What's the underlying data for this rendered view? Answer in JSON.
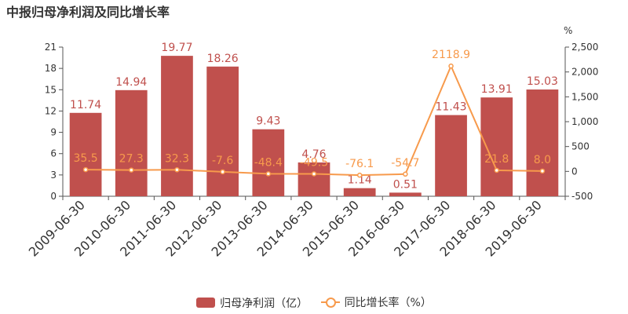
{
  "title": "中报归母净利润及同比增长率",
  "right_axis_unit": "%",
  "legend": {
    "bar_label": "归母净利润（亿）",
    "line_label": "同比增长率（%）"
  },
  "colors": {
    "bar": "#c0504d",
    "line": "#f79a4c",
    "bar_label": "#c0504d",
    "line_label": "#f79a4c"
  },
  "chart_data": {
    "type": "bar",
    "categories": [
      "2009-06-30",
      "2010-06-30",
      "2011-06-30",
      "2012-06-30",
      "2013-06-30",
      "2014-06-30",
      "2015-06-30",
      "2016-06-30",
      "2017-06-30",
      "2018-06-30",
      "2019-06-30"
    ],
    "series": [
      {
        "name": "归母净利润（亿）",
        "type": "bar",
        "axis": "left",
        "values": [
          11.74,
          14.94,
          19.77,
          18.26,
          9.43,
          4.76,
          1.14,
          0.51,
          11.43,
          13.91,
          15.03
        ],
        "labels": [
          "11.74",
          "14.94",
          "19.77",
          "18.26",
          "9.43",
          "4.76",
          "1.14",
          "0.51",
          "11.43",
          "13.91",
          "15.03"
        ]
      },
      {
        "name": "同比增长率（%）",
        "type": "line",
        "axis": "right",
        "values": [
          35.5,
          27.3,
          32.3,
          -7.6,
          -48.4,
          -49.5,
          -76.1,
          -54.7,
          2118.9,
          21.8,
          8.0
        ],
        "labels": [
          "35.5",
          "27.3",
          "32.3",
          "-7.6",
          "-48.4",
          "-49.5",
          "-76.1",
          "-54.7",
          "2118.9",
          "21.8",
          "8.0"
        ]
      }
    ],
    "y_left": {
      "min": 0,
      "max": 21,
      "ticks": [
        "0",
        "3",
        "6",
        "9",
        "12",
        "15",
        "18",
        "21"
      ]
    },
    "y_right": {
      "min": -500,
      "max": 2500,
      "unit": "%",
      "ticks": [
        "-500",
        "0",
        "500",
        "1,000",
        "1,500",
        "2,000",
        "2,500"
      ]
    },
    "grid": false,
    "legend_position": "bottom"
  }
}
